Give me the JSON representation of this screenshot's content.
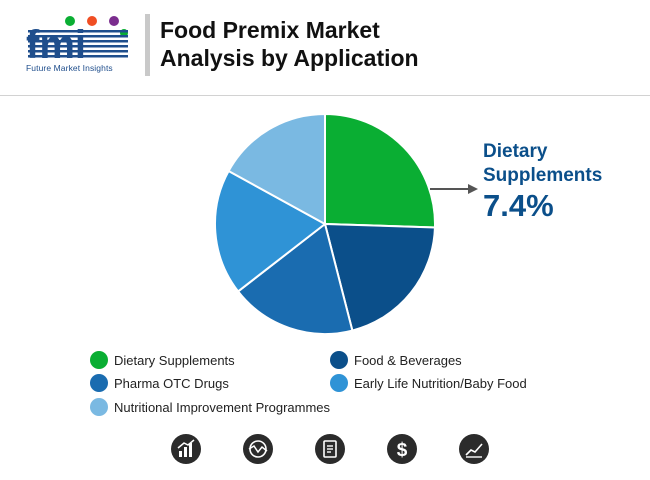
{
  "header": {
    "logo_text": "Future Market Insights",
    "title_line1": "Food Premix Market",
    "title_line2": "Analysis by Application"
  },
  "colors": {
    "dietary_supplements": "#0aae33",
    "food_beverages": "#0b4f8a",
    "pharma_otc": "#1a6cb0",
    "early_life": "#2f93d6",
    "nutritional_improvement": "#7ab9e2",
    "callout": "#0b4f8a"
  },
  "chart_data": {
    "type": "pie",
    "categories": [
      "Dietary Supplements",
      "Food & Beverages",
      "Pharma OTC Drugs",
      "Early Life Nutrition/Baby Food",
      "Nutritional Improvement Programmes"
    ],
    "values": [
      25.5,
      20.5,
      18.5,
      18.5,
      17
    ],
    "callout": {
      "name": "Dietary Supplements",
      "value": "7.4%"
    },
    "legend_position": "bottom"
  },
  "callout": {
    "name": "Dietary Supplements",
    "value": "7.4%"
  },
  "legend": [
    {
      "label": "Dietary Supplements",
      "color": "#0aae33"
    },
    {
      "label": "Food & Beverages",
      "color": "#0b4f8a"
    },
    {
      "label": "Pharma OTC Drugs",
      "color": "#1a6cb0"
    },
    {
      "label": "Early Life Nutrition/Baby Food",
      "color": "#2f93d6"
    },
    {
      "label": "Nutritional Improvement Programmes",
      "color": "#7ab9e2"
    }
  ],
  "footer_icons": [
    "bar-chart-icon",
    "globe-icon",
    "report-icon",
    "dollar-icon",
    "trend-chart-icon"
  ]
}
